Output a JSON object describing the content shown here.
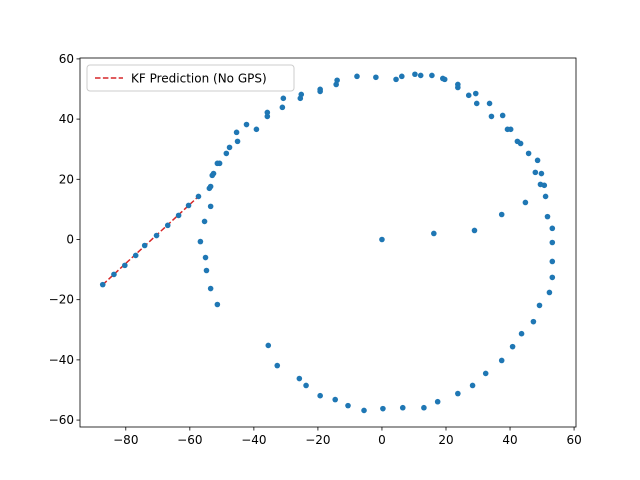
{
  "chart_data": {
    "type": "scatter",
    "series": [
      {
        "name": "KF Prediction (No GPS)",
        "type": "line",
        "dashed": true,
        "color": "#d62728",
        "x": [
          -87.2,
          -57.3
        ],
        "values": [
          -15.0,
          14.3
        ]
      },
      {
        "type": "scatter",
        "color": "#1f77b4",
        "x": [
          0,
          16.2,
          28.9,
          37.4,
          -7.8,
          -1.9,
          4.4,
          6.2,
          10.3,
          12.1,
          15.6,
          19.0,
          19.6,
          23.7,
          23.7,
          27.1,
          29.3,
          29.6,
          33.6,
          34.2,
          37.7,
          39.2,
          40.2,
          42.3,
          43.3,
          45.8,
          48.6,
          47.9,
          49.8,
          49.5,
          50.7,
          51.1,
          44.8,
          51.7,
          53.2,
          53.2,
          53.2,
          53.2,
          52.3,
          49.2,
          47.3,
          43.6,
          40.8,
          37.4,
          32.4,
          28.3,
          23.7,
          17.4,
          13.1,
          6.5,
          0.3,
          -5.6,
          -10.6,
          -14.6,
          -19.3,
          -23.7,
          -25.8,
          -32.7,
          -35.5,
          -19.3,
          -19.3,
          -25.2,
          -25.5,
          -30.8,
          -31.1,
          -14.0,
          -14.3,
          -35.8,
          -35.8,
          -39.2,
          -42.3,
          -45.4,
          -45.1,
          -47.6,
          -48.6,
          -50.7,
          -51.4,
          -52.6,
          -53.0,
          -53.5,
          -53.9,
          -57.3,
          -53.5,
          -55.4,
          -56.7,
          -55.1,
          -54.8,
          -53.5,
          -51.4,
          -60.4,
          -63.5,
          -66.9,
          -70.4,
          -74.1,
          -76.9,
          -80.3,
          -83.7,
          -87.2
        ],
        "values": [
          0,
          2.0,
          3.0,
          8.3,
          54.2,
          53.9,
          53.2,
          54.2,
          54.9,
          54.5,
          54.5,
          53.5,
          53.2,
          51.5,
          50.5,
          47.9,
          48.5,
          45.2,
          45.2,
          40.9,
          41.2,
          36.6,
          36.6,
          32.6,
          31.9,
          28.6,
          26.3,
          22.3,
          21.9,
          18.3,
          18.0,
          14.3,
          12.3,
          7.6,
          3.7,
          -1.0,
          -7.3,
          -12.6,
          -17.6,
          -21.9,
          -27.3,
          -31.3,
          -35.6,
          -40.2,
          -44.5,
          -48.5,
          -51.2,
          -53.9,
          -55.9,
          -55.9,
          -56.2,
          -56.8,
          -55.2,
          -53.2,
          -51.9,
          -48.5,
          -46.2,
          -41.9,
          -35.2,
          49.9,
          49.2,
          48.2,
          46.9,
          46.9,
          43.9,
          52.9,
          51.5,
          42.2,
          40.9,
          36.6,
          38.2,
          35.6,
          32.6,
          30.6,
          28.6,
          25.3,
          25.3,
          21.9,
          21.3,
          17.6,
          17.0,
          14.3,
          11.0,
          6.0,
          -0.7,
          -6.0,
          -10.3,
          -16.3,
          -21.6,
          11.3,
          8.0,
          4.7,
          1.3,
          -2.0,
          -5.3,
          -8.6,
          -11.6,
          -15.0
        ]
      }
    ],
    "xlim": [
      -94.3,
      60.6
    ],
    "ylim": [
      -62.3,
      60.3
    ],
    "xticks": [
      {
        "value": -80,
        "label": "−80"
      },
      {
        "value": -60,
        "label": "−60"
      },
      {
        "value": -40,
        "label": "−40"
      },
      {
        "value": -20,
        "label": "−20"
      },
      0,
      20,
      40,
      60
    ],
    "yticks": [
      {
        "value": -60,
        "label": "−60"
      },
      {
        "value": -40,
        "label": "−40"
      },
      {
        "value": -20,
        "label": "−20"
      },
      0,
      20,
      40,
      60
    ],
    "legend": "upper left"
  }
}
